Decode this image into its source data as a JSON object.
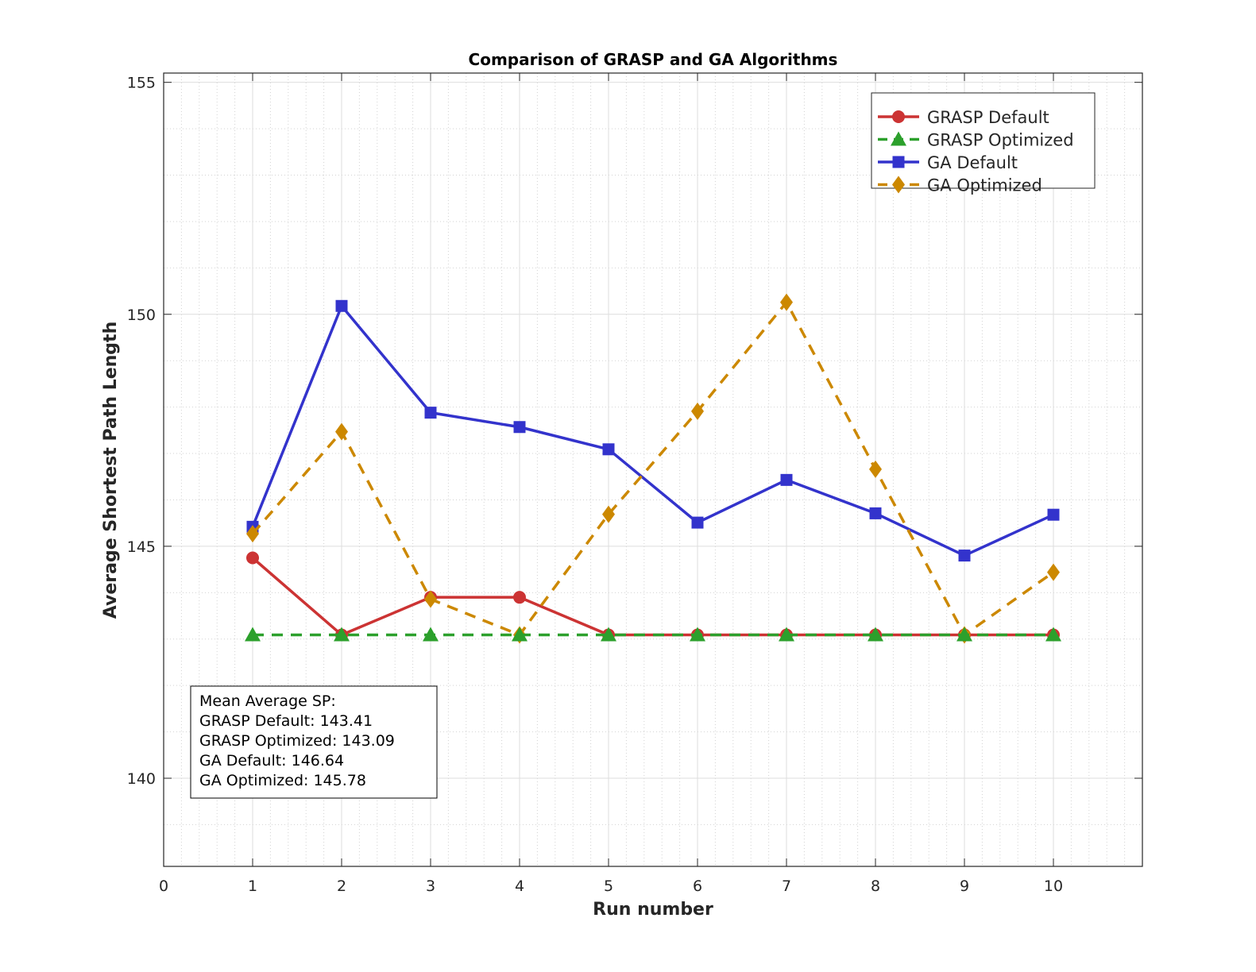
{
  "chart_data": {
    "type": "line",
    "title": "Comparison of GRASP and GA Algorithms",
    "xlabel": "Run number",
    "ylabel": "Average Shortest Path Length",
    "xlim": [
      0,
      11
    ],
    "ylim": [
      138.1,
      155.2
    ],
    "xticks": [
      "0",
      "1",
      "2",
      "3",
      "4",
      "5",
      "6",
      "7",
      "8",
      "9",
      "10"
    ],
    "yticks": [
      "140",
      "145",
      "150",
      "155"
    ],
    "grid": true,
    "minor_grid": true,
    "legend_position": "top-right",
    "x": [
      1,
      2,
      3,
      4,
      5,
      6,
      7,
      8,
      9,
      10
    ],
    "series": [
      {
        "name": "GRASP Default",
        "color": "#cc3333",
        "line": "solid",
        "marker": "circle",
        "values": [
          144.75,
          143.09,
          143.9,
          143.9,
          143.09,
          143.09,
          143.09,
          143.09,
          143.09,
          143.09
        ]
      },
      {
        "name": "GRASP Optimized",
        "color": "#2ca02c",
        "line": "dashed",
        "marker": "triangle",
        "values": [
          143.09,
          143.09,
          143.09,
          143.09,
          143.09,
          143.09,
          143.09,
          143.09,
          143.09,
          143.09
        ]
      },
      {
        "name": "GA Default",
        "color": "#3333cc",
        "line": "solid",
        "marker": "square",
        "values": [
          145.42,
          150.18,
          147.88,
          147.57,
          147.09,
          145.51,
          146.43,
          145.71,
          144.8,
          145.68
        ]
      },
      {
        "name": "GA Optimized",
        "color": "#cc8800",
        "line": "dashed",
        "marker": "diamond",
        "values": [
          145.27,
          147.47,
          143.86,
          143.09,
          145.69,
          147.91,
          150.26,
          146.66,
          143.09,
          144.44
        ]
      }
    ],
    "annotation": {
      "lines": [
        "Mean Average SP:",
        "GRASP Default: 143.41",
        "GRASP Optimized: 143.09",
        "GA Default: 146.64",
        "GA Optimized: 145.78"
      ]
    }
  }
}
